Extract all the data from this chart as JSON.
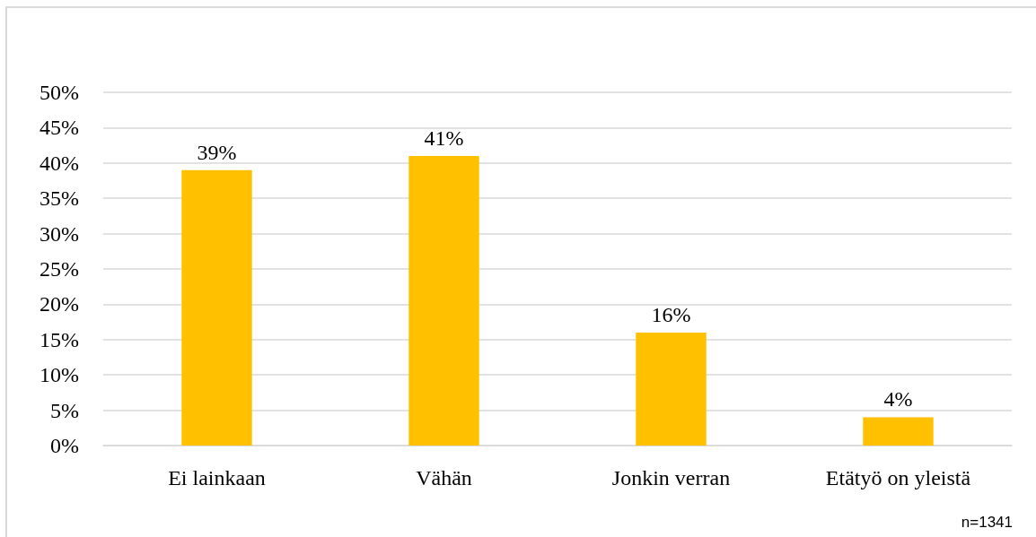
{
  "chart_data": {
    "type": "bar",
    "categories": [
      "Ei lainkaan",
      "Vähän",
      "Jonkin verran",
      "Etätyö on yleistä"
    ],
    "values": [
      39,
      41,
      16,
      4
    ],
    "color": "#ffc000",
    "value_labels": [
      "39%",
      "41%",
      "16%",
      "4%"
    ],
    "ylim": [
      0,
      50
    ],
    "yticks": [
      {
        "value": 0,
        "label": "0%"
      },
      {
        "value": 5,
        "label": "5%"
      },
      {
        "value": 10,
        "label": "10%"
      },
      {
        "value": 15,
        "label": "15%"
      },
      {
        "value": 20,
        "label": "20%"
      },
      {
        "value": 25,
        "label": "25%"
      },
      {
        "value": 30,
        "label": "30%"
      },
      {
        "value": 35,
        "label": "35%"
      },
      {
        "value": 40,
        "label": "40%"
      },
      {
        "value": 45,
        "label": "45%"
      },
      {
        "value": 50,
        "label": "50%"
      }
    ],
    "grid": "y",
    "annotations": [
      "n=1341"
    ]
  }
}
